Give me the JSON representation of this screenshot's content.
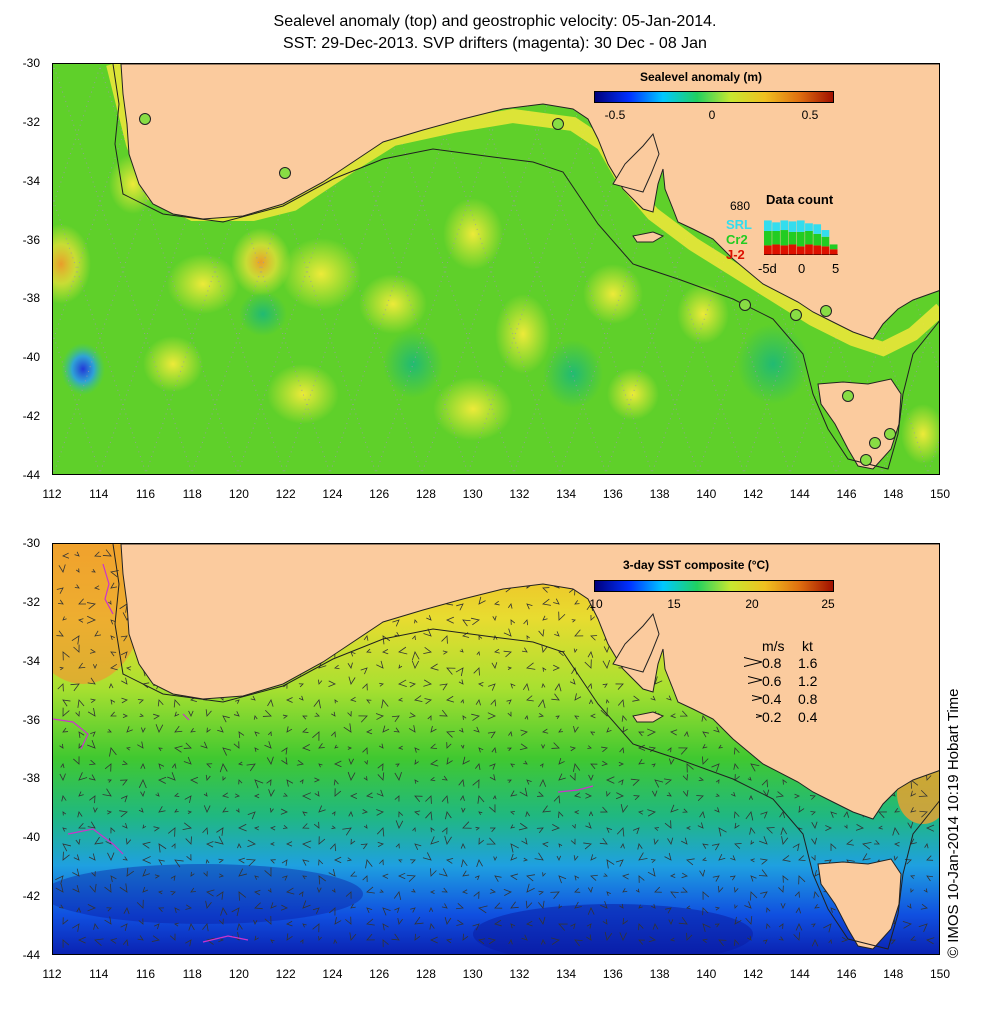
{
  "title": {
    "line1": "Sealevel anomaly (top) and geostrophic velocity: 05-Jan-2014.",
    "line2": "SST: 29-Dec-2013. SVP drifters (magenta): 30 Dec - 08 Jan"
  },
  "axes": {
    "lat_labels": [
      "-30",
      "-32",
      "-34",
      "-36",
      "-38",
      "-40",
      "-42",
      "-44"
    ],
    "lon_labels": [
      "112",
      "114",
      "116",
      "118",
      "120",
      "122",
      "124",
      "126",
      "128",
      "130",
      "132",
      "134",
      "136",
      "138",
      "140",
      "142",
      "144",
      "146",
      "148",
      "150"
    ]
  },
  "top_panel": {
    "colorbar_title": "Sealevel anomaly (m)",
    "colorbar_ticks": [
      "-0.5",
      "0",
      "0.5"
    ],
    "data_count": {
      "title": "Data count",
      "max_label": "680",
      "sources": [
        {
          "label": "SRL",
          "color": "#33ddee"
        },
        {
          "label": "Cr2",
          "color": "#22cc22"
        },
        {
          "label": "J-2",
          "color": "#dd1100"
        }
      ],
      "x_labels": [
        "-5d",
        "0",
        "5"
      ],
      "bars": [
        {
          "j2": 0.2,
          "cr2": 0.3,
          "srl": 0.22
        },
        {
          "j2": 0.22,
          "cr2": 0.28,
          "srl": 0.18
        },
        {
          "j2": 0.2,
          "cr2": 0.32,
          "srl": 0.2
        },
        {
          "j2": 0.22,
          "cr2": 0.26,
          "srl": 0.22
        },
        {
          "j2": 0.18,
          "cr2": 0.3,
          "srl": 0.24
        },
        {
          "j2": 0.22,
          "cr2": 0.28,
          "srl": 0.16
        },
        {
          "j2": 0.2,
          "cr2": 0.24,
          "srl": 0.2
        },
        {
          "j2": 0.18,
          "cr2": 0.2,
          "srl": 0.14
        },
        {
          "j2": 0.12,
          "cr2": 0.1,
          "srl": 0.0
        }
      ]
    }
  },
  "bottom_panel": {
    "colorbar_title": "3-day SST composite (°C)",
    "colorbar_ticks": [
      "10",
      "15",
      "20",
      "25"
    ],
    "velocity_legend": {
      "header_ms": "m/s",
      "header_kt": "kt",
      "rows": [
        {
          "ms": "0.8",
          "kt": "1.6"
        },
        {
          "ms": "0.6",
          "kt": "1.2"
        },
        {
          "ms": "0.4",
          "kt": "0.8"
        },
        {
          "ms": "0.2",
          "kt": "0.4"
        }
      ]
    }
  },
  "credit": "© IMOS 10-Jan-2014 10:19 Hobart Time",
  "colors": {
    "land": "#fbcb9e",
    "drifter": "#cc33cc"
  }
}
